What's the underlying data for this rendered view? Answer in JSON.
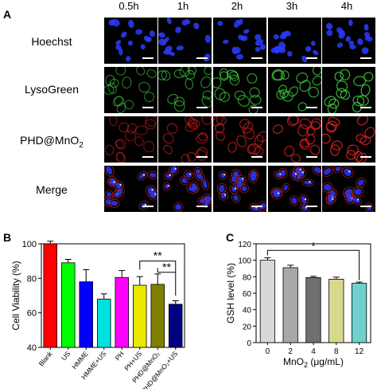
{
  "panel_a": {
    "letter": "A",
    "time_labels": [
      "0.5h",
      "1h",
      "2h",
      "3h",
      "4h"
    ],
    "rows": [
      {
        "label": "Hoechst",
        "stain": "blue"
      },
      {
        "label": "LysoGreen",
        "stain": "green"
      },
      {
        "label": "PHD@MnO",
        "sub": "2",
        "stain": "red"
      },
      {
        "label": "Merge",
        "stain": "merge"
      }
    ],
    "colors": {
      "blue": "#2a3cff",
      "green": "#3fcf3f",
      "red": "#d12020",
      "background": "#000000",
      "scalebar": "#ffffff"
    }
  },
  "chart_data": [
    {
      "panel_letter": "B",
      "type": "bar",
      "categories": [
        "Blank",
        "US",
        "HMME",
        "HMME+US",
        "PH",
        "PH+US",
        "PHD@MnO₂",
        "PHD@MnO₂+US"
      ],
      "values": [
        100,
        89,
        78,
        68,
        80.5,
        76,
        76.5,
        65
      ],
      "errors": [
        1.5,
        2,
        7,
        3,
        4,
        5,
        6,
        2
      ],
      "colors": [
        "#ff0000",
        "#00ff00",
        "#0000ff",
        "#00e0e0",
        "#ff00ff",
        "#e8e800",
        "#808000",
        "#000080"
      ],
      "ylabel": "Cell Viability (%)",
      "xlabel": "",
      "ylim": [
        40,
        100
      ],
      "yticks": [
        40,
        60,
        80,
        100
      ],
      "annotations": [
        "**",
        "**"
      ]
    },
    {
      "panel_letter": "C",
      "type": "bar",
      "categories": [
        "0",
        "2",
        "4",
        "8",
        "12"
      ],
      "values": [
        100,
        91,
        79,
        77,
        72
      ],
      "errors": [
        3,
        3,
        1.5,
        2.5,
        1.5
      ],
      "colors": [
        "#d8d8d8",
        "#a8a8a8",
        "#707070",
        "#d8d88c",
        "#70d0cc"
      ],
      "ylabel": "GSH level (%)",
      "xlabel_main": "MnO",
      "xlabel_sub": "2",
      "xlabel_unit": " (μg/mL)",
      "ylim": [
        0,
        120
      ],
      "yticks": [
        0,
        20,
        40,
        60,
        80,
        100,
        120
      ],
      "annotations": [
        "*"
      ]
    }
  ]
}
